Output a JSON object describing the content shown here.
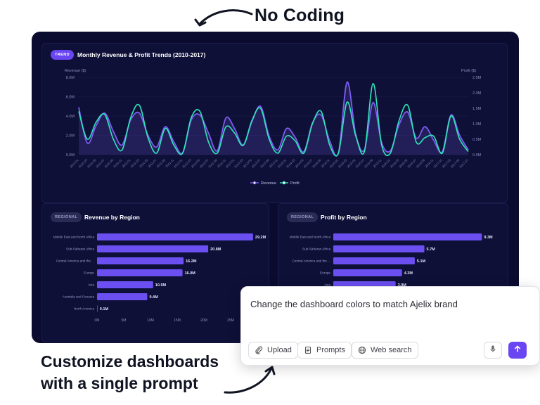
{
  "headline": "No Coding",
  "caption": {
    "line1": "Customize dashboards",
    "line2": "with a single prompt"
  },
  "trend_panel": {
    "tag": "TREND",
    "title": "Monthly Revenue & Profit Trends (2010-2017)",
    "left_axis_label": "Revenue ($)",
    "right_axis_label": "Profit ($)",
    "legend": [
      "Revenue",
      "Profit"
    ]
  },
  "revenue_panel": {
    "tag": "REGIONAL",
    "title": "Revenue by Region"
  },
  "profit_panel": {
    "tag": "REGIONAL",
    "title": "Profit by Region"
  },
  "prompt_box": {
    "text": "Change the dashboard colors to match Ajelix brand",
    "upload_label": "Upload",
    "prompts_label": "Prompts",
    "web_search_label": "Web search"
  },
  "colors": {
    "revenue": "#7b5cf0",
    "profit": "#2ee6b8",
    "accent": "#6a46f2",
    "bar": "#6b4ff0",
    "background": "#0b0b30"
  },
  "chart_data": [
    {
      "type": "line",
      "title": "Monthly Revenue & Profit Trends (2010-2017)",
      "ylabel": "Revenue ($)",
      "y2label": "Profit ($)",
      "ylim": [
        0,
        8
      ],
      "y2lim": [
        0,
        2.5
      ],
      "yticks": [
        "0.0M",
        "2.0M",
        "4.0M",
        "6.0M",
        "8.0M"
      ],
      "y2ticks": [
        "0.0M",
        "0.5M",
        "1.0M",
        "1.5M",
        "2.0M",
        "2.5M"
      ],
      "legend_position": "bottom",
      "xtick_labels": [
        "2010-01",
        "2010-03",
        "2010-05",
        "2010-07",
        "2010-09",
        "2010-11",
        "2011-01",
        "2011-03",
        "2011-05",
        "2011-07",
        "2011-09",
        "2011-11",
        "2012-01",
        "2012-03",
        "2012-05",
        "2012-07",
        "2012-09",
        "2012-11",
        "2013-01",
        "2013-03",
        "2013-05",
        "2013-07",
        "2013-09",
        "2013-11",
        "2014-01",
        "2014-03",
        "2014-05",
        "2014-07",
        "2014-09",
        "2014-11",
        "2015-01",
        "2015-03",
        "2015-05",
        "2015-07",
        "2015-09",
        "2015-11",
        "2016-01",
        "2016-03",
        "2016-05",
        "2016-07",
        "2016-09",
        "2016-11",
        "2017-01",
        "2017-03",
        "2017-05",
        "2017-07"
      ],
      "series": [
        {
          "name": "Revenue",
          "values": [
            4.9,
            1.2,
            3.0,
            4.3,
            2.4,
            1.0,
            3.6,
            4.3,
            2.0,
            0.8,
            2.9,
            1.3,
            0.2,
            3.6,
            4.1,
            2.2,
            0.4,
            3.8,
            2.7,
            1.0,
            3.4,
            5.0,
            1.9,
            0.5,
            2.7,
            1.8,
            0.3,
            3.3,
            4.1,
            1.4,
            0.2,
            7.5,
            2.1,
            0.5,
            5.4,
            1.2,
            0.4,
            3.1,
            4.4,
            1.7,
            2.9,
            1.5,
            0.3,
            4.1,
            2.0,
            0.5
          ]
        },
        {
          "name": "Profit",
          "values": [
            1.4,
            0.5,
            1.05,
            1.3,
            0.5,
            0.15,
            1.2,
            1.6,
            0.55,
            0.05,
            0.85,
            0.3,
            0.05,
            1.2,
            1.4,
            0.4,
            0.05,
            0.9,
            0.7,
            0.3,
            1.1,
            1.5,
            0.5,
            0.05,
            0.6,
            0.45,
            0.05,
            1.0,
            1.4,
            0.3,
            0.05,
            1.7,
            0.6,
            0.1,
            2.3,
            0.3,
            0.05,
            1.1,
            1.6,
            0.4,
            0.55,
            0.6,
            0.05,
            1.25,
            0.5,
            0.1
          ]
        }
      ]
    },
    {
      "type": "bar",
      "title": "Revenue by Region",
      "orientation": "horizontal",
      "categories": [
        "Middle East and North Africa",
        "Sub-Saharan Africa",
        "Central America and the ...",
        "Europe",
        "Asia",
        "Australia and Oceania",
        "North America"
      ],
      "values": [
        29.2,
        20.8,
        16.2,
        16.0,
        10.5,
        9.4,
        0.1
      ],
      "labels": [
        "29.2M",
        "20.8M",
        "16.2M",
        "16.0M",
        "10.5M",
        "9.4M",
        "0.1M"
      ],
      "xlim": [
        0,
        30
      ],
      "xticks": [
        "0M",
        "5M",
        "10M",
        "15M",
        "20M",
        "25M"
      ]
    },
    {
      "type": "bar",
      "title": "Profit by Region",
      "orientation": "horizontal",
      "categories": [
        "Middle East and North Africa",
        "Sub-Saharan Africa",
        "Central America and the ...",
        "Europe",
        "Asia"
      ],
      "values": [
        9.3,
        5.7,
        5.1,
        4.3,
        3.9
      ],
      "labels": [
        "9.3M",
        "5.7M",
        "5.1M",
        "4.3M",
        "3.9M"
      ],
      "xlim": [
        0,
        11
      ]
    }
  ]
}
